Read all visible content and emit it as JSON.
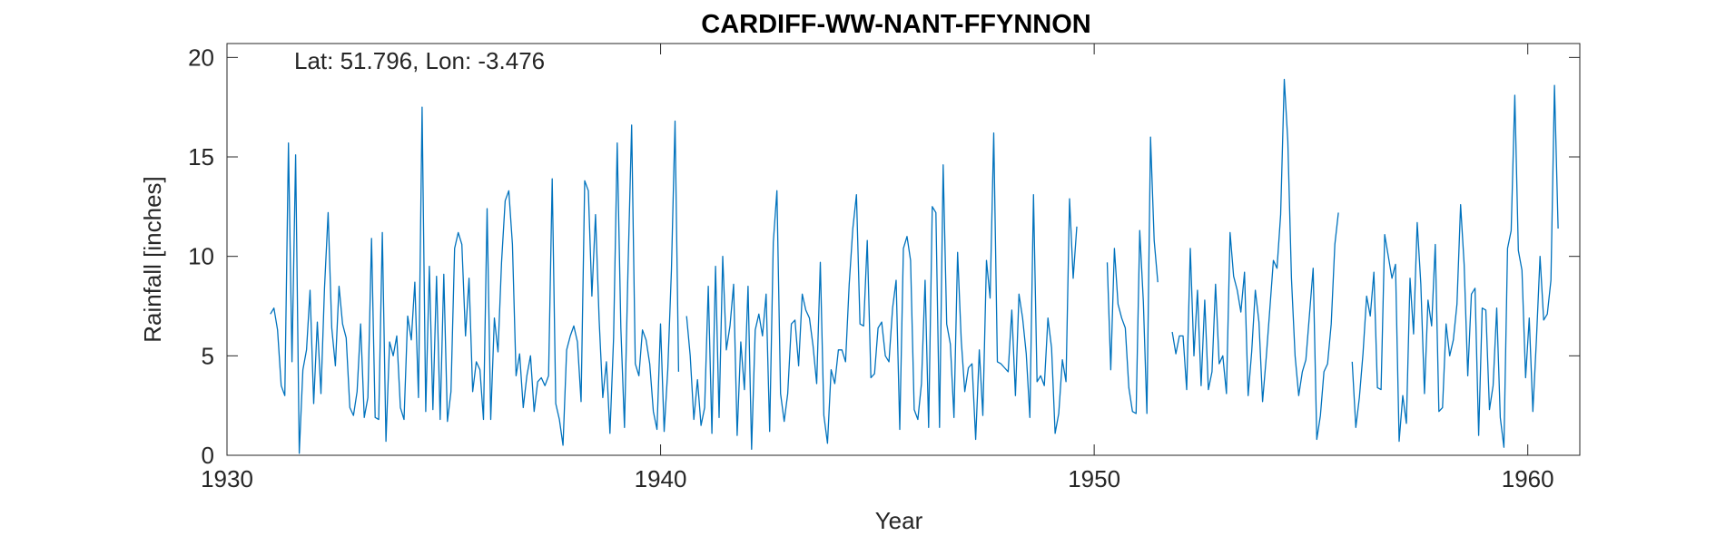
{
  "chart_data": {
    "type": "line",
    "title": "CARDIFF-WW-NANT-FFYNNON",
    "xlabel": "Year",
    "ylabel": "Rainfall [inches]",
    "annotation": "Lat: 51.796, Lon: -3.476",
    "xlim": [
      1930,
      1961.2
    ],
    "ylim": [
      0,
      20.7
    ],
    "xticks": [
      1930,
      1940,
      1950,
      1960
    ],
    "yticks": [
      0,
      5,
      10,
      15,
      20
    ],
    "grid": false,
    "box": true,
    "line_color": "#0072BD",
    "series": [
      {
        "segments": [
          {
            "start_year": 1931.0,
            "step": 0.08333,
            "values": [
              7.1,
              7.4,
              6.3,
              3.5,
              3.0,
              15.7,
              4.7,
              15.1,
              0.1,
              4.3,
              5.3,
              8.3,
              2.6,
              6.7,
              3.1,
              8.4,
              12.2,
              6.4,
              4.5,
              8.5,
              6.6,
              5.9,
              2.4,
              2.0,
              3.2,
              6.6,
              1.9,
              2.9,
              10.9,
              1.9,
              1.8,
              11.2,
              0.7,
              5.7,
              5.0,
              6.0,
              2.4,
              1.8,
              7.0,
              5.8,
              8.7,
              2.9,
              17.5,
              2.2,
              9.5,
              2.3,
              9.0,
              1.8,
              9.1,
              1.7,
              3.2,
              10.4,
              11.2,
              10.6,
              6.0,
              8.9,
              3.2,
              4.7,
              4.3,
              1.8,
              12.4,
              1.8,
              6.9,
              5.2,
              9.7,
              12.8,
              13.3,
              10.6,
              4.0,
              5.1,
              2.4,
              4.0,
              5.0,
              2.2,
              3.7,
              3.9,
              3.5,
              4.0,
              13.9,
              2.6,
              1.8,
              0.5,
              5.3,
              6.0,
              6.5,
              5.7,
              2.7,
              13.8,
              13.3,
              8.0,
              12.1,
              6.8,
              2.9,
              4.7,
              1.1,
              5.9,
              15.7,
              6.4,
              1.4,
              9.4,
              16.6,
              4.6,
              4.0,
              6.3,
              5.8,
              4.6,
              2.2,
              1.3,
              6.6,
              1.2,
              4.3,
              9.3,
              16.8,
              4.2
            ]
          },
          {
            "start_year": 1940.6,
            "step": 0.08333,
            "values": [
              7.0,
              5.0,
              1.8,
              3.8,
              1.5,
              2.4,
              8.5,
              1.1,
              9.5,
              1.9,
              10.0,
              5.3,
              6.5,
              8.6,
              1.0,
              5.7,
              3.3,
              8.5,
              0.3,
              6.3,
              7.1,
              6.0,
              8.1,
              1.2,
              10.7,
              13.3,
              3.1,
              1.7,
              3.1,
              6.6,
              6.8,
              4.5,
              8.1,
              7.3,
              6.9,
              5.5,
              3.6,
              9.7,
              2.0,
              0.6,
              4.3,
              3.6,
              5.3,
              5.3,
              4.7,
              8.6,
              11.4,
              13.1,
              6.6,
              6.5,
              10.8,
              3.9,
              4.1,
              6.4,
              6.7,
              5.0,
              4.7,
              7.4,
              8.8,
              1.3,
              10.4,
              11.0,
              9.8,
              2.3,
              1.8,
              3.6,
              8.8,
              1.4,
              12.5,
              12.2,
              1.4,
              14.6,
              6.6,
              5.6,
              1.9,
              10.2,
              5.8,
              3.2,
              4.4,
              4.6,
              0.8,
              5.3,
              2.0,
              9.8,
              7.9,
              16.2,
              4.7,
              4.6,
              4.4,
              4.2,
              7.3,
              3.0,
              8.1,
              6.9,
              5.1,
              1.9,
              13.1,
              3.7,
              4.0,
              3.5,
              6.9,
              5.4,
              1.1,
              2.1,
              4.8,
              3.7,
              12.9,
              8.9,
              11.5
            ]
          },
          {
            "start_year": 1950.3,
            "step": 0.08333,
            "values": [
              9.7,
              4.3,
              10.4,
              7.6,
              6.9,
              6.4,
              3.4,
              2.2,
              2.1,
              11.3,
              7.7,
              2.1,
              16.0,
              10.8,
              8.7
            ]
          },
          {
            "start_year": 1951.8,
            "step": 0.08333,
            "values": [
              6.2,
              5.1,
              6.0,
              6.0,
              3.3,
              10.4,
              5.0,
              8.3,
              3.5,
              7.8,
              3.3,
              4.2,
              8.6,
              4.6,
              5.0,
              3.1,
              11.2,
              9.0,
              8.3,
              7.2,
              9.2,
              3.0,
              5.2,
              8.3,
              6.7,
              2.7,
              4.9,
              7.3,
              9.8,
              9.4,
              12.1,
              18.9,
              15.8,
              8.9,
              5.0,
              3.0,
              4.2,
              4.8,
              7.1,
              9.4,
              0.8,
              2.0,
              4.2,
              4.6,
              6.6,
              10.6,
              12.2
            ]
          },
          {
            "start_year": 1955.95,
            "step": 0.08333,
            "values": [
              4.7,
              1.4,
              2.9,
              5.1,
              8.0,
              7.0,
              9.2,
              3.4,
              3.3,
              11.1,
              10.0,
              8.9,
              9.6,
              0.7,
              3.0,
              1.6,
              8.9,
              6.1,
              11.7,
              8.6,
              3.1,
              7.8,
              6.5,
              10.6,
              2.2,
              2.4,
              6.6,
              5.0,
              5.8,
              7.6,
              12.6,
              9.6,
              4.0,
              8.1,
              8.4,
              1.0,
              7.4,
              7.3,
              2.3,
              3.5,
              7.4,
              1.9,
              0.4,
              10.4,
              11.3,
              18.1,
              10.3,
              9.3,
              3.9,
              6.9,
              2.2,
              5.8,
              10.0,
              6.8,
              7.1,
              8.8,
              18.6,
              11.4
            ]
          }
        ]
      }
    ]
  }
}
